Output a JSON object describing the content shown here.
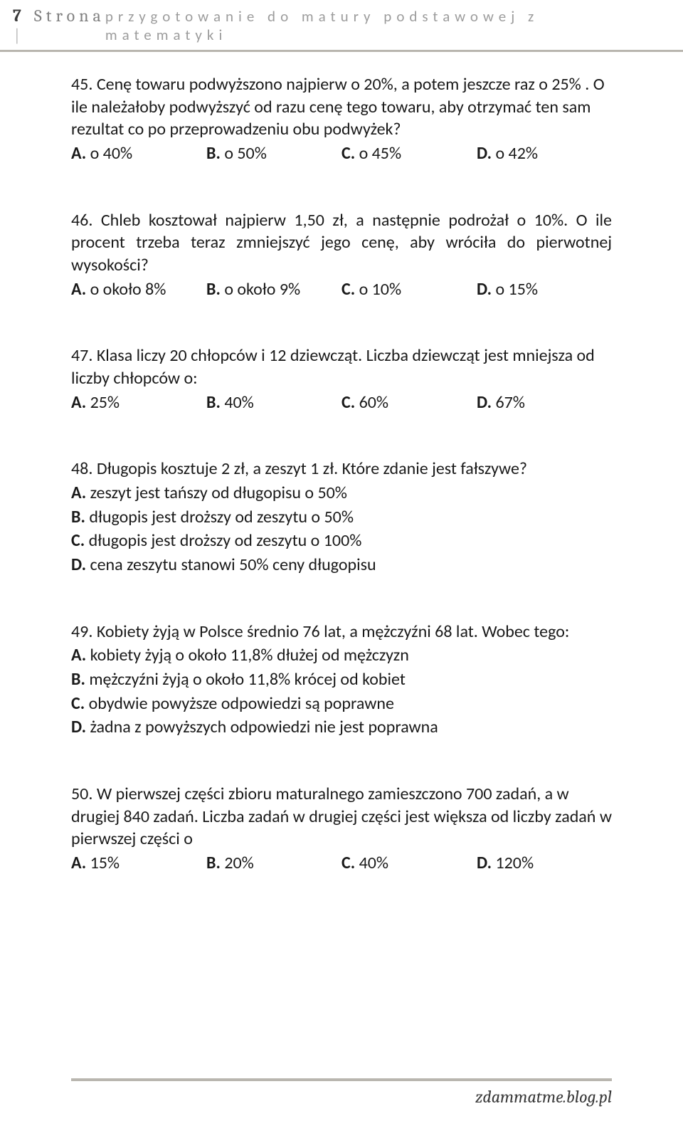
{
  "header": {
    "page_number": "7",
    "page_label": "Strona",
    "subtitle": "przygotowanie do matury podstawowej z matematyki"
  },
  "questions": [
    {
      "num": "45.",
      "text": "Cenę towaru podwyższono najpierw o 20%, a potem jeszcze raz o 25% . O ile należałoby podwyższyć od razu cenę tego towaru, aby otrzymać ten sam rezultat co po przeprowadzeniu obu podwyżek?",
      "justify": false,
      "layout": "row",
      "options": [
        {
          "label": "A.",
          "text": "o 40%"
        },
        {
          "label": "B.",
          "text": "o 50%"
        },
        {
          "label": "C.",
          "text": "o 45%"
        },
        {
          "label": "D.",
          "text": "o 42%"
        }
      ]
    },
    {
      "num": "46.",
      "text": "Chleb kosztował najpierw 1,50 zł, a następnie podrożał o 10%. O ile procent trzeba teraz zmniejszyć jego cenę, aby wróciła do pierwotnej wysokości?",
      "justify": true,
      "layout": "row",
      "options": [
        {
          "label": "A.",
          "text": "o około 8%"
        },
        {
          "label": "B.",
          "text": "o około 9%"
        },
        {
          "label": "C.",
          "text": "o 10%"
        },
        {
          "label": "D.",
          "text": "o 15%"
        }
      ]
    },
    {
      "num": "47.",
      "text": "Klasa liczy 20 chłopców i 12 dziewcząt. Liczba dziewcząt jest mniejsza od liczby chłopców o:",
      "justify": false,
      "layout": "row",
      "options": [
        {
          "label": "A.",
          "text": "25%"
        },
        {
          "label": "B.",
          "text": "40%"
        },
        {
          "label": "C.",
          "text": "60%"
        },
        {
          "label": "D.",
          "text": "67%"
        }
      ]
    },
    {
      "num": "48.",
      "text": "Długopis kosztuje 2 zł, a zeszyt 1 zł. Które zdanie jest fałszywe?",
      "justify": false,
      "layout": "list",
      "options": [
        {
          "label": "A.",
          "text": "zeszyt jest tańszy od długopisu o 50%"
        },
        {
          "label": "B.",
          "text": "długopis jest droższy od zeszytu o 50%"
        },
        {
          "label": "C.",
          "text": "długopis jest droższy od zeszytu o 100%"
        },
        {
          "label": "D.",
          "text": "cena zeszytu stanowi 50% ceny długopisu"
        }
      ]
    },
    {
      "num": "49.",
      "text": "Kobiety żyją w Polsce średnio 76 lat, a mężczyźni 68 lat. Wobec tego:",
      "justify": false,
      "layout": "list",
      "options": [
        {
          "label": "A.",
          "text": "kobiety żyją o około 11,8% dłużej od mężczyzn"
        },
        {
          "label": "B.",
          "text": "mężczyźni żyją o około 11,8% krócej od kobiet"
        },
        {
          "label": "C.",
          "text": "obydwie powyższe odpowiedzi są poprawne"
        },
        {
          "label": "D.",
          "text": "żadna z powyższych odpowiedzi nie jest poprawna"
        }
      ]
    },
    {
      "num": "50.",
      "text": "W pierwszej części zbioru maturalnego zamieszczono 700 zadań, a w drugiej 840 zadań. Liczba zadań w drugiej części jest większa od liczby zadań w pierwszej części o",
      "justify": false,
      "layout": "row",
      "options": [
        {
          "label": "A.",
          "text": "15%"
        },
        {
          "label": "B.",
          "text": "20%"
        },
        {
          "label": "C.",
          "text": "40%"
        },
        {
          "label": "D.",
          "text": "120%"
        }
      ]
    }
  ],
  "footer": "zdammatme.blog.pl"
}
